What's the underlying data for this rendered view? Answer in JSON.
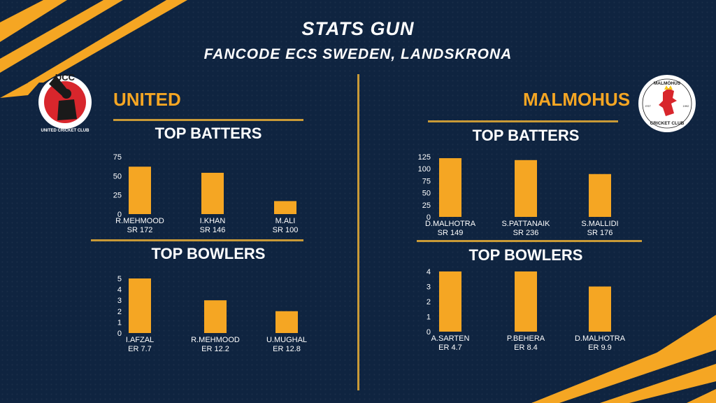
{
  "header": {
    "title": "STATS GUN",
    "subtitle": "FANCODE ECS SWEDEN, LANDSKRONA"
  },
  "colors": {
    "background": "#0f2440",
    "accent": "#f5a623",
    "divider": "#c99a37",
    "text": "#ffffff"
  },
  "teams": [
    {
      "name": "UNITED",
      "logo": {
        "initials": "UCC",
        "ring_text": "UNITED CRICKET CLUB",
        "icon": "batsman-logo"
      },
      "batters_title": "TOP BATTERS",
      "bowlers_title": "TOP BOWLERS"
    },
    {
      "name": "MALMOHUS",
      "logo": {
        "top_text": "MALMÖHUS",
        "bottom_text": "CRICKET CLUB",
        "est": "EST",
        "year": "1992",
        "icon": "griffin-logo"
      },
      "batters_title": "TOP BATTERS",
      "bowlers_title": "TOP BOWLERS"
    }
  ],
  "chart_data": [
    {
      "type": "bar",
      "title": "TOP BATTERS",
      "categories": [
        "R.MEHMOOD",
        "I.KHAN",
        "M.ALI"
      ],
      "sublabels": [
        "SR 172",
        "SR 146",
        "SR 100"
      ],
      "values": [
        62,
        54,
        17
      ],
      "ylim": [
        0,
        75
      ],
      "yticks": [
        0,
        25,
        50,
        75
      ],
      "grid": false
    },
    {
      "type": "bar",
      "title": "TOP BOWLERS",
      "categories": [
        "I.AFZAL",
        "R.MEHMOOD",
        "U.MUGHAL"
      ],
      "sublabels": [
        "ER 7.7",
        "ER 12.2",
        "ER 12.8"
      ],
      "values": [
        5,
        3,
        2
      ],
      "ylim": [
        0,
        5
      ],
      "yticks": [
        0,
        1,
        2,
        3,
        4,
        5
      ],
      "grid": false
    },
    {
      "type": "bar",
      "title": "TOP BATTERS",
      "categories": [
        "D.MALHOTRA",
        "S.PATTANAIK",
        "S.MALLIDI"
      ],
      "sublabels": [
        "SR 149",
        "SR 236",
        "SR 176"
      ],
      "values": [
        122,
        118,
        89
      ],
      "ylim": [
        0,
        125
      ],
      "yticks": [
        0,
        25,
        50,
        75,
        100,
        125
      ],
      "grid": false
    },
    {
      "type": "bar",
      "title": "TOP BOWLERS",
      "categories": [
        "A.SARTEN",
        "P.BEHERA",
        "D.MALHOTRA"
      ],
      "sublabels": [
        "ER 4.7",
        "ER 8.4",
        "ER 9.9"
      ],
      "values": [
        4,
        4,
        3
      ],
      "ylim": [
        0,
        4
      ],
      "yticks": [
        0,
        1,
        2,
        3,
        4
      ],
      "grid": false
    }
  ]
}
